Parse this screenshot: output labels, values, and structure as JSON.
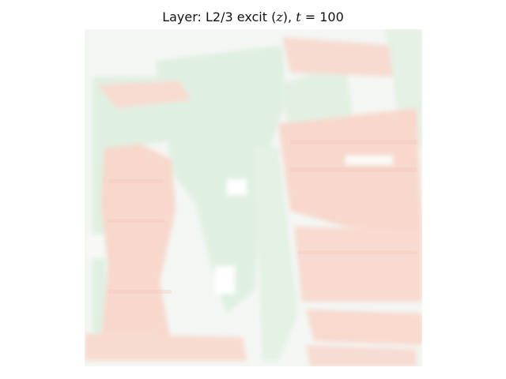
{
  "figure": {
    "title_prefix": "Layer: L2/3 excit (",
    "title_var": "z",
    "title_mid": "), ",
    "title_t": "t",
    "title_eq": " = 100"
  },
  "colors": {
    "background": "#f3f5f2",
    "pink": "#f7d9cf",
    "green": "#dff0e2",
    "white": "#f7f8f6"
  }
}
